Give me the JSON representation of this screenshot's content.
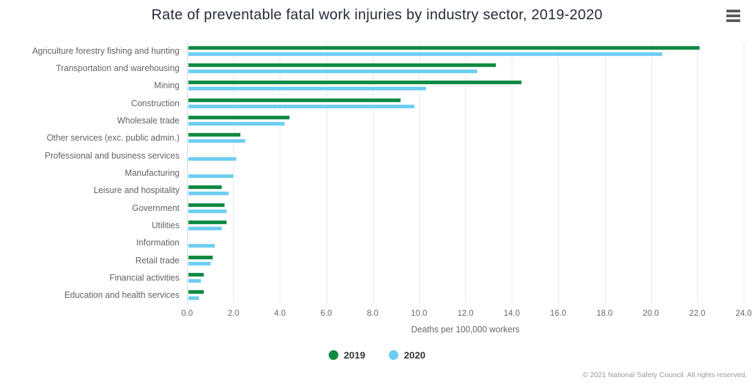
{
  "header": {
    "menu_tooltip": "Chart context menu"
  },
  "chart_data": {
    "type": "bar",
    "orientation": "horizontal",
    "title": "Rate of preventable fatal work injuries by industry sector, 2019-2020",
    "xlabel": "Deaths per 100,000 workers",
    "xlim": [
      0,
      24
    ],
    "xtick_step": 2,
    "xticks": [
      "0.0",
      "2.0",
      "4.0",
      "6.0",
      "8.0",
      "10.0",
      "12.0",
      "14.0",
      "16.0",
      "18.0",
      "20.0",
      "22.0",
      "24.0"
    ],
    "grid": true,
    "legend_position": "bottom",
    "categories": [
      "Agriculture forestry fishing and hunting",
      "Transportation and warehousing",
      "Mining",
      "Construction",
      "Wholesale trade",
      "Other services (exc. public admin.)",
      "Professional and business services",
      "Manufacturing",
      "Leisure and hospitality",
      "Government",
      "Utilities",
      "Information",
      "Retail trade",
      "Financial activities",
      "Education and health services"
    ],
    "series": [
      {
        "name": "2019",
        "color": "#0f8a42",
        "values": [
          22.1,
          13.3,
          14.4,
          9.2,
          4.4,
          2.3,
          null,
          null,
          1.5,
          1.6,
          1.7,
          null,
          1.1,
          0.7,
          0.7
        ]
      },
      {
        "name": "2020",
        "color": "#6ecef2",
        "values": [
          20.5,
          12.5,
          10.3,
          9.8,
          4.2,
          2.5,
          2.1,
          2.0,
          1.8,
          1.7,
          1.5,
          1.2,
          1.0,
          0.6,
          0.5
        ]
      }
    ]
  },
  "footer": {
    "credits": "© 2021 National Safety Council. All rights reserved."
  }
}
